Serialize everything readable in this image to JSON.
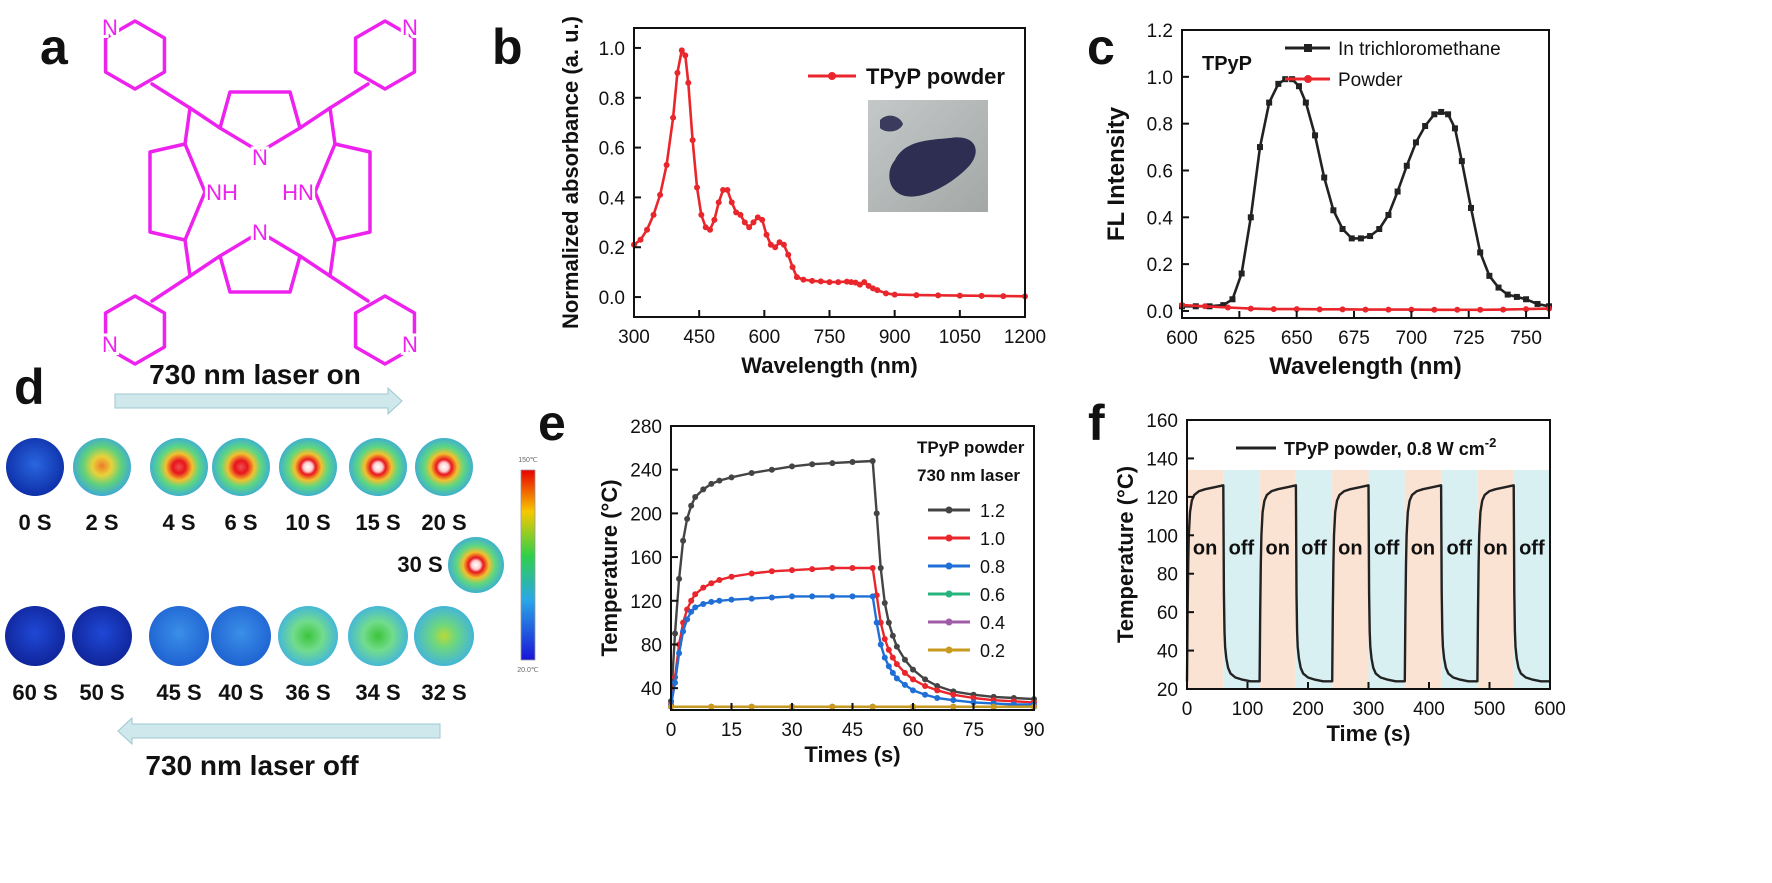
{
  "colors": {
    "magenta": "#ee22ee",
    "black": "#222222",
    "red": "#e8262b",
    "blue": "#1f6fd6",
    "green": "#27b47c",
    "purple": "#a05ca8",
    "gold": "#c89a1e",
    "dark": "#444444",
    "on_shade": "#fbe3d4",
    "off_shade": "#d9f0f2",
    "arrow": "#cfe8ec"
  },
  "panels": {
    "a": {
      "letter": "a",
      "atoms": {
        "n_tl": "N",
        "n_tr": "N",
        "n_bl": "N",
        "n_br": "N",
        "n_top": "N",
        "n_bottom": "N",
        "nh_left": "NH",
        "hn_right": "HN"
      }
    },
    "d": {
      "letter": "d",
      "arrow_on_label": "730 nm laser on",
      "arrow_off_label": "730 nm laser off",
      "top_row": [
        "0 S",
        "2 S",
        "4 S",
        "6 S",
        "10 S",
        "15 S",
        "20 S"
      ],
      "middle": "30 S",
      "bottom_row": [
        "60 S",
        "50 S",
        "45 S",
        "40 S",
        "36 S",
        "34 S",
        "32 S"
      ],
      "colorbar_top": "150℃",
      "colorbar_bottom": "20.0℃"
    }
  },
  "chart_data": [
    {
      "panel": "b",
      "type": "line",
      "xlabel": "Wavelength (nm)",
      "ylabel": "Normalized absorbance (a. u.)",
      "xlim": [
        300,
        1200
      ],
      "ylim": [
        -0.08,
        1.08
      ],
      "xticks": [
        300,
        450,
        600,
        750,
        900,
        1050,
        1200
      ],
      "yticks": [
        0.0,
        0.2,
        0.4,
        0.6,
        0.8,
        1.0
      ],
      "ytick_labels": [
        "0.0",
        "0.2",
        "0.4",
        "0.6",
        "0.8",
        "1.0"
      ],
      "legend": "top-right",
      "series": [
        {
          "name": "TPyP powder",
          "color": "#e8262b",
          "x": [
            300,
            315,
            330,
            345,
            360,
            375,
            390,
            400,
            410,
            418,
            425,
            435,
            445,
            455,
            465,
            475,
            485,
            495,
            505,
            515,
            525,
            535,
            545,
            555,
            565,
            575,
            585,
            595,
            605,
            615,
            625,
            635,
            645,
            655,
            665,
            675,
            690,
            710,
            730,
            750,
            770,
            790,
            800,
            810,
            820,
            830,
            840,
            850,
            860,
            880,
            900,
            950,
            1000,
            1050,
            1100,
            1150,
            1200
          ],
          "y": [
            0.21,
            0.23,
            0.27,
            0.33,
            0.41,
            0.53,
            0.72,
            0.9,
            0.99,
            0.97,
            0.86,
            0.63,
            0.44,
            0.33,
            0.28,
            0.27,
            0.31,
            0.38,
            0.43,
            0.43,
            0.38,
            0.34,
            0.33,
            0.3,
            0.28,
            0.3,
            0.32,
            0.31,
            0.25,
            0.21,
            0.2,
            0.22,
            0.21,
            0.17,
            0.12,
            0.08,
            0.07,
            0.065,
            0.063,
            0.06,
            0.06,
            0.062,
            0.06,
            0.058,
            0.05,
            0.06,
            0.045,
            0.035,
            0.028,
            0.015,
            0.01,
            0.008,
            0.007,
            0.006,
            0.005,
            0.004,
            0.003
          ]
        }
      ]
    },
    {
      "panel": "c",
      "type": "line",
      "xlabel": "Wavelength (nm)",
      "ylabel": "FL Intensity",
      "annotation": "TPyP",
      "xlim": [
        600,
        760
      ],
      "ylim": [
        -0.03,
        1.2
      ],
      "xticks": [
        600,
        625,
        650,
        675,
        700,
        725,
        750
      ],
      "yticks": [
        0.0,
        0.2,
        0.4,
        0.6,
        0.8,
        1.0,
        1.2
      ],
      "ytick_labels": [
        "0.0",
        "0.2",
        "0.4",
        "0.6",
        "0.8",
        "1.0",
        "1.2"
      ],
      "legend": "top-right",
      "series": [
        {
          "name": "In trichloromethane",
          "color": "#222222",
          "x": [
            600,
            606,
            612,
            618,
            622,
            626,
            630,
            634,
            638,
            642,
            645,
            648,
            651,
            654,
            658,
            662,
            666,
            670,
            674,
            678,
            682,
            686,
            690,
            694,
            698,
            702,
            706,
            710,
            713,
            716,
            719,
            722,
            726,
            730,
            734,
            738,
            742,
            746,
            750,
            755,
            760
          ],
          "y": [
            0.02,
            0.02,
            0.02,
            0.025,
            0.05,
            0.16,
            0.4,
            0.7,
            0.89,
            0.97,
            0.99,
            0.99,
            0.96,
            0.89,
            0.75,
            0.57,
            0.43,
            0.35,
            0.31,
            0.31,
            0.32,
            0.35,
            0.41,
            0.51,
            0.62,
            0.72,
            0.79,
            0.84,
            0.85,
            0.84,
            0.78,
            0.64,
            0.44,
            0.25,
            0.15,
            0.1,
            0.07,
            0.06,
            0.05,
            0.03,
            0.02
          ]
        },
        {
          "name": "Powder",
          "color": "#e8262b",
          "x": [
            600,
            610,
            620,
            630,
            640,
            650,
            660,
            670,
            680,
            690,
            700,
            710,
            720,
            730,
            740,
            750,
            760
          ],
          "y": [
            0.025,
            0.02,
            0.015,
            0.01,
            0.008,
            0.008,
            0.007,
            0.007,
            0.006,
            0.006,
            0.006,
            0.005,
            0.005,
            0.005,
            0.006,
            0.008,
            0.01
          ]
        }
      ]
    },
    {
      "panel": "e",
      "type": "line",
      "xlabel": "Times (s)",
      "ylabel": "Temperature (°C)",
      "xlim": [
        0,
        90
      ],
      "ylim": [
        20,
        280
      ],
      "xticks": [
        0,
        15,
        30,
        45,
        60,
        75,
        90
      ],
      "yticks": [
        40,
        80,
        120,
        160,
        200,
        240,
        280
      ],
      "legend": "right",
      "legend_title_1": "TPyP powder",
      "legend_title_2": "730 nm laser",
      "series": [
        {
          "name": "1.2",
          "color": "#444444",
          "x": [
            0,
            1,
            2,
            3,
            4,
            5,
            6,
            8,
            10,
            12,
            15,
            20,
            25,
            30,
            35,
            40,
            45,
            50,
            51,
            52,
            53,
            54,
            55,
            56,
            58,
            60,
            63,
            66,
            70,
            75,
            80,
            85,
            90
          ],
          "y": [
            28,
            90,
            140,
            175,
            195,
            207,
            215,
            222,
            227,
            230,
            233,
            237,
            240,
            243,
            245,
            246,
            247,
            248,
            200,
            150,
            118,
            100,
            88,
            78,
            66,
            57,
            48,
            42,
            37,
            34,
            32,
            31,
            30
          ]
        },
        {
          "name": "1.0",
          "color": "#e8262b",
          "x": [
            0,
            1,
            2,
            3,
            4,
            5,
            6,
            8,
            10,
            12,
            15,
            20,
            25,
            30,
            35,
            40,
            45,
            50,
            51,
            52,
            53,
            54,
            55,
            56,
            58,
            60,
            63,
            66,
            70,
            75,
            80,
            85,
            90
          ],
          "y": [
            25,
            50,
            80,
            100,
            112,
            120,
            126,
            132,
            136,
            139,
            142,
            145,
            147,
            148,
            149,
            150,
            150,
            150,
            125,
            100,
            85,
            75,
            68,
            62,
            54,
            48,
            42,
            38,
            34,
            31,
            29,
            28,
            27
          ]
        },
        {
          "name": "0.8",
          "color": "#1f6fd6",
          "x": [
            0,
            1,
            2,
            3,
            4,
            5,
            6,
            8,
            10,
            12,
            15,
            20,
            25,
            30,
            35,
            40,
            45,
            50,
            51,
            52,
            53,
            54,
            55,
            56,
            58,
            60,
            63,
            66,
            70,
            75,
            80,
            85,
            90
          ],
          "y": [
            24,
            45,
            72,
            92,
            103,
            110,
            114,
            117,
            119,
            120,
            121,
            122,
            123,
            124,
            124,
            124,
            124,
            124,
            100,
            80,
            68,
            60,
            54,
            49,
            43,
            38,
            34,
            31,
            29,
            27,
            26,
            25,
            25
          ]
        },
        {
          "name": "0.6",
          "color": "#27b47c",
          "x": [
            0,
            10,
            20,
            30,
            40,
            50,
            60,
            70,
            80,
            90
          ],
          "y": [
            23,
            23,
            23,
            23,
            23,
            23,
            23,
            23,
            23,
            23
          ]
        },
        {
          "name": "0.4",
          "color": "#a05ca8",
          "x": [
            0,
            10,
            20,
            30,
            40,
            50,
            60,
            70,
            80,
            90
          ],
          "y": [
            23,
            23,
            23,
            23,
            23,
            23,
            23,
            23,
            23,
            23
          ]
        },
        {
          "name": "0.2",
          "color": "#c89a1e",
          "x": [
            0,
            10,
            20,
            30,
            40,
            50,
            60,
            70,
            80,
            90
          ],
          "y": [
            23,
            23,
            23,
            23,
            23,
            23,
            23,
            23,
            23,
            23
          ]
        }
      ]
    },
    {
      "panel": "f",
      "type": "line",
      "xlabel": "Time (s)",
      "ylabel": "Temperature (°C)",
      "xlim": [
        0,
        600
      ],
      "ylim": [
        20,
        160
      ],
      "xticks": [
        0,
        100,
        200,
        300,
        400,
        500,
        600
      ],
      "yticks": [
        20,
        40,
        60,
        80,
        100,
        120,
        140,
        160
      ],
      "legend": "top",
      "cycle_period": 120,
      "on_duration": 60,
      "cycles": 5,
      "on_label": "on",
      "off_label": "off",
      "series": [
        {
          "name": "TPyP powder, 0.8 W cm",
          "name_superscript": "-2",
          "color": "#222222",
          "on_profile_t": [
            0,
            1,
            2,
            3,
            5,
            8,
            12,
            20,
            30,
            45,
            60
          ],
          "on_profile_y": [
            24,
            60,
            85,
            100,
            112,
            118,
            121,
            123,
            124,
            125,
            126
          ],
          "off_profile_t": [
            0,
            1,
            2,
            3,
            5,
            8,
            12,
            20,
            30,
            45,
            60
          ],
          "off_profile_y": [
            126,
            70,
            50,
            42,
            36,
            31,
            28,
            26,
            25,
            24,
            24
          ]
        }
      ]
    }
  ]
}
